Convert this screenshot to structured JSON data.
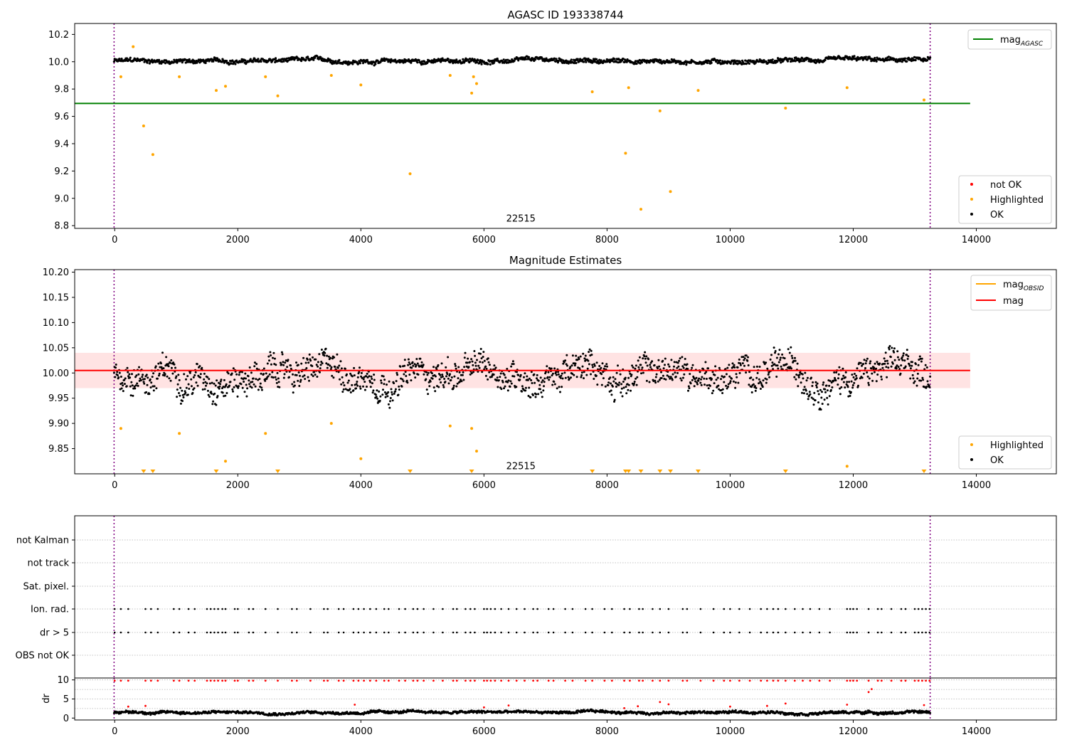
{
  "colors": {
    "ok": "#000000",
    "highlighted": "#ffa500",
    "not_ok": "#ff0000",
    "mag_agasc": "#008000",
    "mag_line": "#ff0000",
    "mag_obsid": "#ffa500",
    "band": "#ffc0c0",
    "time_limits": "#800080",
    "grid": "#b0b0b0"
  },
  "chart_data": [
    {
      "type": "scatter",
      "title": "AGASC ID 193338744",
      "xlim": [
        -650,
        15300
      ],
      "ylim": [
        8.78,
        10.28
      ],
      "xticks": [
        0,
        2000,
        4000,
        6000,
        8000,
        10000,
        12000,
        14000
      ],
      "yticks": [
        8.8,
        9.0,
        9.2,
        9.4,
        9.6,
        9.8,
        10.0,
        10.2
      ],
      "annotation": {
        "text": "22515",
        "x": 6600,
        "y": 8.85
      },
      "time_limits": [
        -10,
        13250
      ],
      "reference_line": {
        "name": "mag",
        "subscript": "AGASC",
        "y": 9.695,
        "x": [
          -650,
          13900
        ]
      },
      "ok_band": {
        "x": [
          -10,
          13250
        ],
        "center": 10.005,
        "spread": 0.022
      },
      "highlighted": {
        "x": [
          100,
          300,
          470,
          620,
          1050,
          1650,
          1800,
          2450,
          2650,
          3520,
          4000,
          4800,
          5450,
          5800,
          5830,
          5880,
          7760,
          8300,
          8350,
          8550,
          8860,
          9030,
          9480,
          10900,
          11900,
          13150
        ],
        "y": [
          9.89,
          10.11,
          9.53,
          9.32,
          9.89,
          9.79,
          9.82,
          9.89,
          9.75,
          9.9,
          9.83,
          9.18,
          9.9,
          9.77,
          9.89,
          9.84,
          9.78,
          9.33,
          9.81,
          8.92,
          9.64,
          9.05,
          9.79,
          9.66,
          9.81,
          9.72
        ]
      },
      "legend": {
        "line_entries": [
          {
            "name": "mag",
            "subscript": "AGASC"
          }
        ],
        "marker_entries": [
          "not OK",
          "Highlighted",
          "OK"
        ],
        "line_position": "top-right",
        "marker_position": "lower-right"
      }
    },
    {
      "type": "scatter",
      "title": "Magnitude Estimates",
      "xlim": [
        -650,
        15300
      ],
      "ylim": [
        9.8,
        10.205
      ],
      "xticks": [
        0,
        2000,
        4000,
        6000,
        8000,
        10000,
        12000,
        14000
      ],
      "yticks": [
        9.85,
        9.9,
        9.95,
        10.0,
        10.05,
        10.1,
        10.15,
        10.2
      ],
      "annotation": {
        "text": "22515",
        "x": 6600,
        "y": 9.815
      },
      "time_limits": [
        -10,
        13250
      ],
      "reference_line": {
        "name": "mag",
        "y": 10.005,
        "x": [
          -650,
          13900
        ]
      },
      "band": {
        "y": [
          9.97,
          10.04
        ],
        "x": [
          -650,
          13900
        ]
      },
      "ok_band": {
        "x": [
          -10,
          13250
        ],
        "center": 10.0,
        "spread": 0.04
      },
      "highlighted": {
        "x": [
          100,
          1050,
          1800,
          2450,
          3520,
          4000,
          5450,
          5800,
          5880,
          11900
        ],
        "y": [
          9.89,
          9.88,
          9.825,
          9.88,
          9.9,
          9.83,
          9.895,
          9.89,
          9.845,
          9.815
        ]
      },
      "clipped_markers_x": [
        470,
        620,
        1650,
        2650,
        4800,
        5800,
        7760,
        8300,
        8350,
        8550,
        8860,
        9030,
        9480,
        10900,
        13150
      ],
      "legend": {
        "line_entries": [
          {
            "name": "mag",
            "subscript": "OBSID"
          },
          {
            "name": "mag",
            "subscript": ""
          }
        ],
        "marker_entries": [
          "Highlighted",
          "OK"
        ],
        "line_position": "top-right",
        "marker_position": "lower-right"
      }
    },
    {
      "type": "scatter",
      "title": "",
      "xlim": [
        -650,
        15300
      ],
      "time_limits": [
        -10,
        13250
      ],
      "categories": [
        "not Kalman",
        "not track",
        "Sat. pixel.",
        "Ion. rad.",
        "dr > 5",
        "OBS not OK"
      ],
      "flag_positions_x": [
        0,
        100,
        220,
        500,
        590,
        700,
        960,
        1050,
        1200,
        1300,
        1500,
        1560,
        1620,
        1680,
        1750,
        1800,
        1950,
        2000,
        2180,
        2250,
        2450,
        2650,
        2880,
        2960,
        3180,
        3400,
        3460,
        3640,
        3720,
        3880,
        3960,
        4050,
        4150,
        4250,
        4380,
        4450,
        4620,
        4720,
        4850,
        4920,
        5020,
        5180,
        5330,
        5500,
        5560,
        5700,
        5780,
        5850,
        6000,
        6050,
        6110,
        6180,
        6280,
        6400,
        6530,
        6660,
        6800,
        6870,
        7050,
        7130,
        7320,
        7440,
        7650,
        7760,
        7960,
        8080,
        8280,
        8370,
        8520,
        8580,
        8740,
        8860,
        9000,
        9230,
        9300,
        9520,
        9730,
        9900,
        10000,
        10150,
        10320,
        10500,
        10600,
        10700,
        10780,
        10900,
        11050,
        11180,
        11300,
        11450,
        11620,
        11900,
        11950,
        12000,
        12060,
        12250,
        12400,
        12460,
        12620,
        12780,
        12850,
        13000,
        13060,
        13120,
        13180,
        13240
      ]
    },
    {
      "type": "scatter",
      "title": "",
      "ylabel": "dr",
      "xlim": [
        -650,
        15300
      ],
      "ylim": [
        -0.5,
        10.5
      ],
      "xticks": [
        0,
        2000,
        4000,
        6000,
        8000,
        10000,
        12000,
        14000
      ],
      "yticks": [
        0,
        5,
        10
      ],
      "time_limits": [
        -10,
        13250
      ],
      "ok_band": {
        "x": [
          -10,
          13250
        ],
        "center": 1.5,
        "spread": 0.5
      },
      "not_ok_at_cap_x": [
        0,
        100,
        220,
        500,
        590,
        700,
        960,
        1050,
        1200,
        1300,
        1500,
        1560,
        1620,
        1680,
        1750,
        1800,
        1950,
        2000,
        2180,
        2250,
        2450,
        2650,
        2880,
        2960,
        3180,
        3400,
        3460,
        3640,
        3720,
        3880,
        3960,
        4050,
        4150,
        4250,
        4380,
        4450,
        4620,
        4720,
        4850,
        4920,
        5020,
        5180,
        5330,
        5500,
        5560,
        5700,
        5780,
        5850,
        6000,
        6050,
        6110,
        6180,
        6280,
        6400,
        6530,
        6660,
        6800,
        6870,
        7050,
        7130,
        7320,
        7440,
        7650,
        7760,
        7960,
        8080,
        8280,
        8370,
        8520,
        8580,
        8740,
        8860,
        9000,
        9230,
        9300,
        9520,
        9730,
        9900,
        10000,
        10150,
        10320,
        10500,
        10600,
        10700,
        10780,
        10900,
        11050,
        11180,
        11300,
        11450,
        11620,
        11900,
        11950,
        12000,
        12060,
        12250,
        12400,
        12460,
        12620,
        12780,
        12850,
        13000,
        13060,
        13120,
        13180,
        13240
      ],
      "not_ok_scattered": {
        "x": [
          220,
          500,
          3900,
          6000,
          6400,
          8280,
          8500,
          8860,
          9000,
          10000,
          10600,
          10900,
          11900,
          12250,
          12300,
          13150
        ],
        "y": [
          3.0,
          3.2,
          3.5,
          2.8,
          3.3,
          2.6,
          3.1,
          4.2,
          3.6,
          3.0,
          3.2,
          3.8,
          3.5,
          6.8,
          7.6,
          3.4
        ]
      }
    }
  ]
}
